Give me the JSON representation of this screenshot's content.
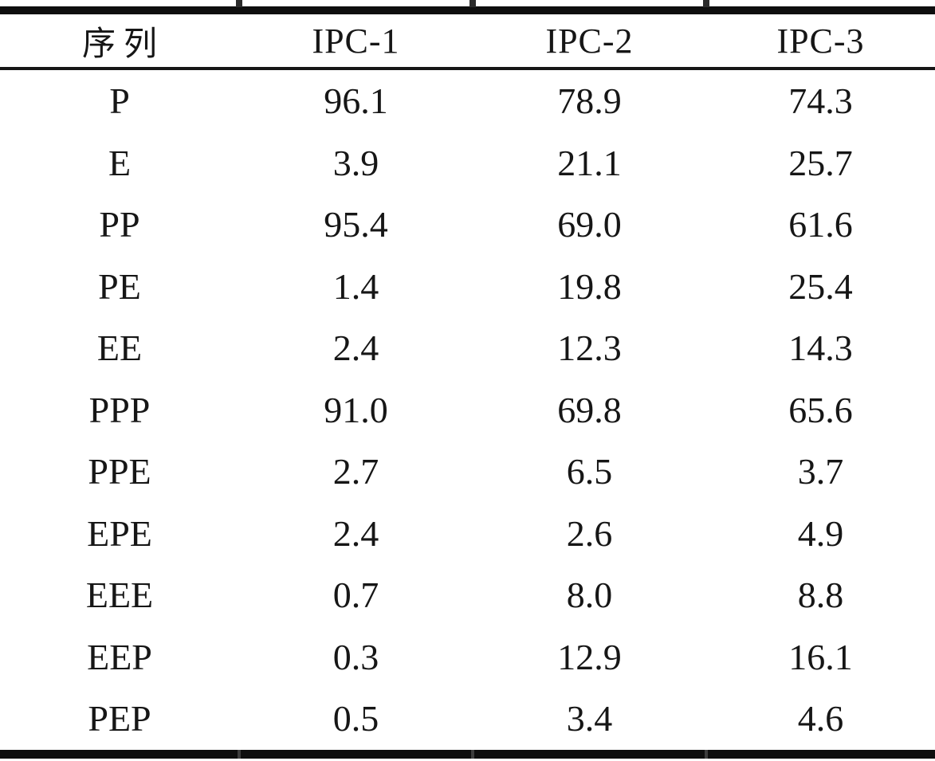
{
  "table": {
    "columns": [
      "序列",
      "IPC-1",
      "IPC-2",
      "IPC-3"
    ],
    "rows": [
      {
        "label": "P",
        "values": [
          "96.1",
          "78.9",
          "74.3"
        ]
      },
      {
        "label": "E",
        "values": [
          "3.9",
          "21.1",
          "25.7"
        ]
      },
      {
        "label": "PP",
        "values": [
          "95.4",
          "69.0",
          "61.6"
        ]
      },
      {
        "label": "PE",
        "values": [
          "1.4",
          "19.8",
          "25.4"
        ]
      },
      {
        "label": "EE",
        "values": [
          "2.4",
          "12.3",
          "14.3"
        ]
      },
      {
        "label": "PPP",
        "values": [
          "91.0",
          "69.8",
          "65.6"
        ]
      },
      {
        "label": "PPE",
        "values": [
          "2.7",
          "6.5",
          "3.7"
        ]
      },
      {
        "label": "EPE",
        "values": [
          "2.4",
          "2.6",
          "4.9"
        ]
      },
      {
        "label": "EEE",
        "values": [
          "0.7",
          "8.0",
          "8.8"
        ]
      },
      {
        "label": "EEP",
        "values": [
          "0.3",
          "12.9",
          "16.1"
        ]
      },
      {
        "label": "PEP",
        "values": [
          "0.5",
          "3.4",
          "4.6"
        ]
      }
    ],
    "colors": {
      "text": "#161616",
      "rule": "#0e0e0e",
      "background": "#ffffff"
    }
  }
}
